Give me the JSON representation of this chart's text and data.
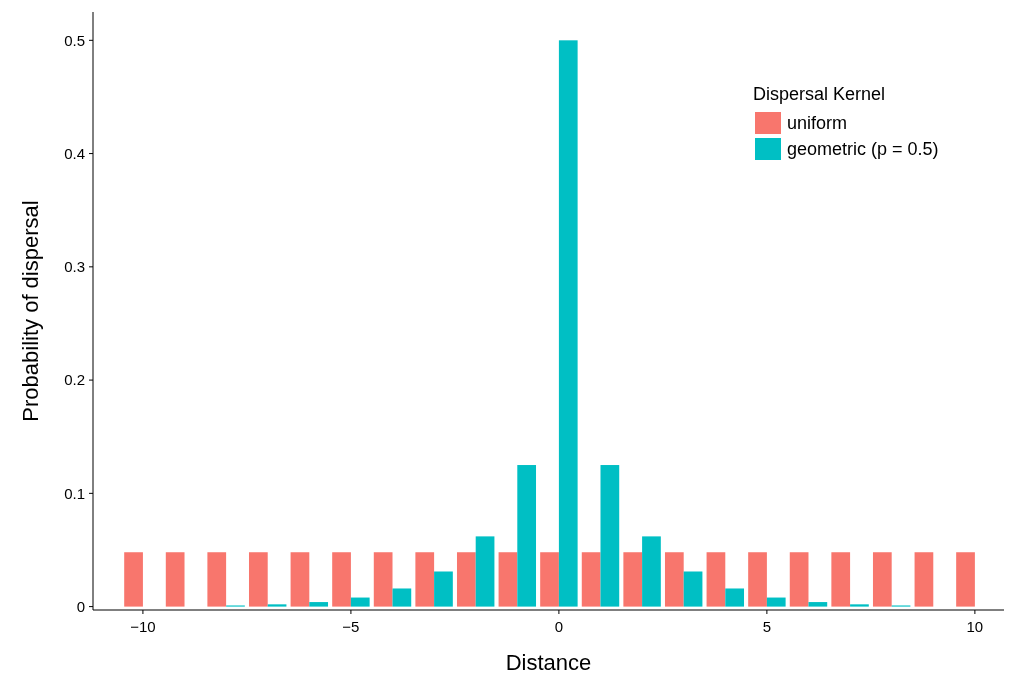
{
  "chart_data": {
    "type": "bar",
    "xlabel": "Distance",
    "ylabel": "Probability of dispersal",
    "legend_title": "Dispersal Kernel",
    "legend": "top right",
    "grid": false,
    "x": [
      -10,
      -9,
      -8,
      -7,
      -6,
      -5,
      -4,
      -3,
      -2,
      -1,
      0,
      1,
      2,
      3,
      4,
      5,
      6,
      7,
      8,
      9,
      10
    ],
    "series": [
      {
        "name": "uniform",
        "color": "#f8766d",
        "values": [
          0.048,
          0.048,
          0.048,
          0.048,
          0.048,
          0.048,
          0.048,
          0.048,
          0.048,
          0.048,
          0.048,
          0.048,
          0.048,
          0.048,
          0.048,
          0.048,
          0.048,
          0.048,
          0.048,
          0.048,
          0.048
        ]
      },
      {
        "name": "geometric (p = 0.5)",
        "color": "#00bfc4",
        "values": [
          0,
          0,
          0.001,
          0.002,
          0.004,
          0.008,
          0.016,
          0.031,
          0.062,
          0.125,
          0.5,
          0.125,
          0.062,
          0.031,
          0.016,
          0.008,
          0.004,
          0.002,
          0.001,
          0,
          0
        ]
      }
    ],
    "xlim": [
      -11.2,
      10.7
    ],
    "xticks": [
      {
        "value": -10,
        "label": "−10"
      },
      {
        "value": -5,
        "label": "−5"
      },
      0,
      5,
      10
    ],
    "ylim": [
      -0.003,
      0.525
    ],
    "yticks": [
      0,
      0.1,
      0.2,
      0.3,
      0.4,
      0.5
    ]
  }
}
